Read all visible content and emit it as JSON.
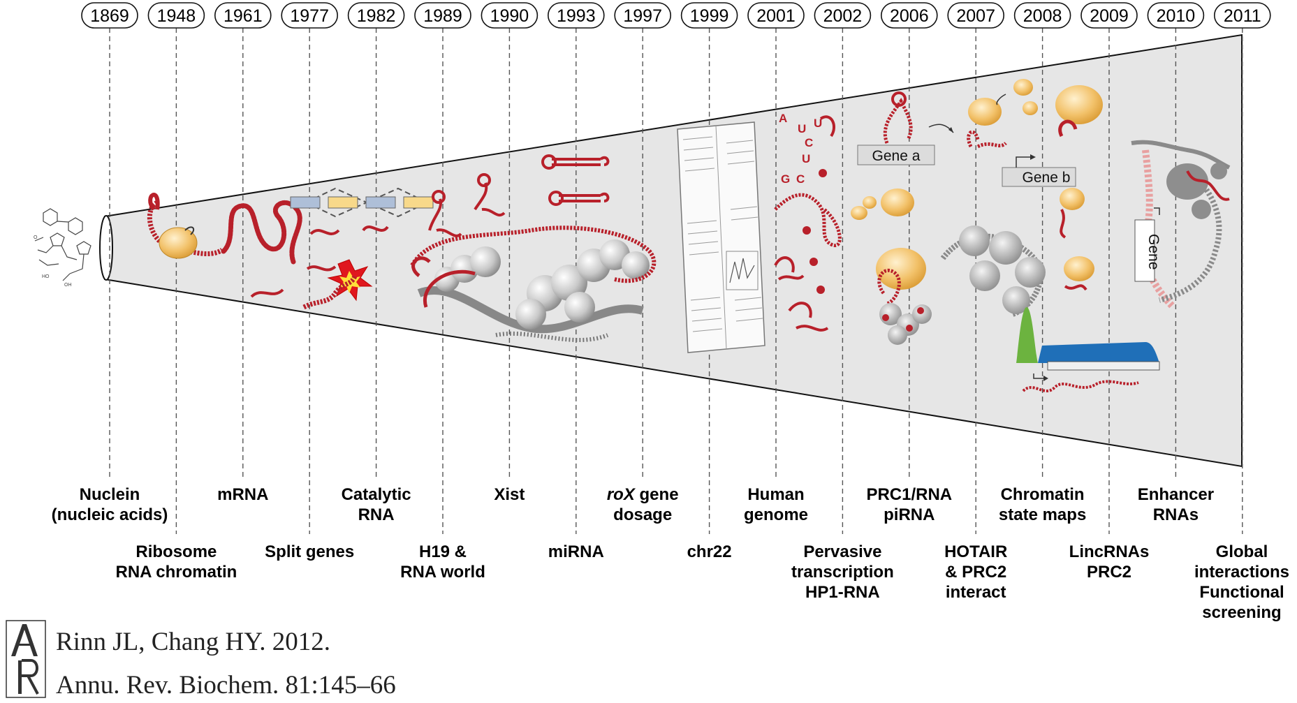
{
  "timeline": {
    "years": [
      "1869",
      "1948",
      "1961",
      "1977",
      "1982",
      "1989",
      "1990",
      "1993",
      "1997",
      "1999",
      "2001",
      "2002",
      "2006",
      "2007",
      "2008",
      "2009",
      "2010",
      "2011"
    ],
    "events_upper": [
      {
        "year": "1869",
        "lines": [
          "Nuclein",
          "(nucleic acids)"
        ]
      },
      {
        "year": "1961",
        "lines": [
          "mRNA"
        ]
      },
      {
        "year": "1982",
        "lines": [
          "Catalytic",
          "RNA"
        ]
      },
      {
        "year": "1990",
        "lines": [
          "Xist"
        ]
      },
      {
        "year": "1997",
        "lines": [
          "gene",
          "dosage"
        ],
        "italic_prefix": "roX"
      },
      {
        "year": "2001",
        "lines": [
          "Human",
          "genome"
        ]
      },
      {
        "year": "2006",
        "lines": [
          "PRC1/RNA",
          "piRNA"
        ]
      },
      {
        "year": "2008",
        "lines": [
          "Chromatin",
          "state maps"
        ]
      },
      {
        "year": "2010",
        "lines": [
          "Enhancer",
          "RNAs"
        ]
      }
    ],
    "events_lower": [
      {
        "year": "1948",
        "lines": [
          "Ribosome",
          "RNA chromatin"
        ]
      },
      {
        "year": "1977",
        "lines": [
          "Split genes"
        ]
      },
      {
        "year": "1989",
        "lines": [
          "H19 &",
          "RNA world"
        ]
      },
      {
        "year": "1993",
        "lines": [
          "miRNA"
        ]
      },
      {
        "year": "1999",
        "lines": [
          "chr22"
        ]
      },
      {
        "year": "2002",
        "lines": [
          "Pervasive",
          "transcription",
          "HP1-RNA"
        ]
      },
      {
        "year": "2007",
        "lines": [
          "HOTAIR",
          "& PRC2",
          "interact"
        ]
      },
      {
        "year": "2009",
        "lines": [
          "LincRNAs",
          "PRC2"
        ]
      },
      {
        "year": "2011",
        "lines": [
          "Global",
          "interactions",
          "Functional",
          "screening"
        ]
      }
    ]
  },
  "illustrations": {
    "gene_a": "Gene a",
    "gene_b": "Gene b",
    "gene": "Gene",
    "nucleotides": [
      "A",
      "U",
      "U",
      "C",
      "U",
      "G",
      "C"
    ]
  },
  "citation": {
    "line1": "Rinn JL, Chang HY. 2012.",
    "line2": "Annu. Rev. Biochem. 81:145–66"
  },
  "colors": {
    "rna": "#b8202a",
    "protein": "#f2c169",
    "cone": "#e6e6e6",
    "chromatin_green": "#6cb33f",
    "chromatin_blue": "#1f6fb8",
    "exon_blue": "#aebfd8",
    "exon_yellow": "#f8d98a"
  }
}
